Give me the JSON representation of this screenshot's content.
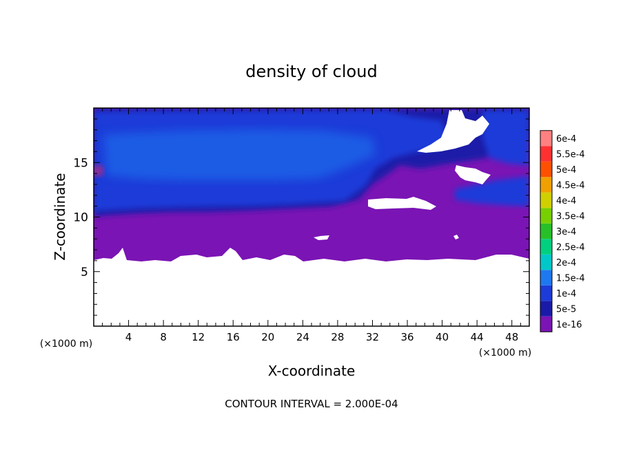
{
  "chart_data": {
    "type": "heatmap",
    "title": "density of cloud",
    "xlabel": "X-coordinate",
    "ylabel": "Z-coordinate",
    "x_unit": "(×1000 m)",
    "y_unit": "(×1000 m)",
    "xlim": [
      0,
      50
    ],
    "ylim": [
      0,
      20
    ],
    "x_ticks": [
      4,
      8,
      12,
      16,
      20,
      24,
      28,
      32,
      36,
      40,
      44,
      48
    ],
    "y_ticks": [
      5,
      10,
      15
    ],
    "footer": "CONTOUR INTERVAL = 2.000E-04",
    "colorbar": {
      "levels": [
        "1e-16",
        "5e-5",
        "1e-4",
        "1.5e-4",
        "2e-4",
        "2.5e-4",
        "3e-4",
        "3.5e-4",
        "4e-4",
        "4.5e-4",
        "5e-4",
        "5.5e-4",
        "6e-4"
      ],
      "colors": [
        "#7a14b4",
        "#1a1aa8",
        "#1c3bd8",
        "#1e78f0",
        "#00c8c8",
        "#00d080",
        "#28c028",
        "#78d000",
        "#d0d000",
        "#f0a000",
        "#ff5000",
        "#ff3030",
        "#ff8080"
      ]
    },
    "fields": {
      "cloud_free_below_z": 6.2,
      "cloud_base_z": 10.5,
      "cloud_top_z": 19.8,
      "clear_patches": [
        {
          "x": [
            32.5,
            39.5
          ],
          "z": [
            10.5,
            11.7
          ]
        },
        {
          "x": [
            40.0,
            45.0
          ],
          "z": [
            15.5,
            19.8
          ]
        },
        {
          "x": [
            41.5,
            45.5
          ],
          "z": [
            13.1,
            15.3
          ]
        }
      ]
    }
  }
}
